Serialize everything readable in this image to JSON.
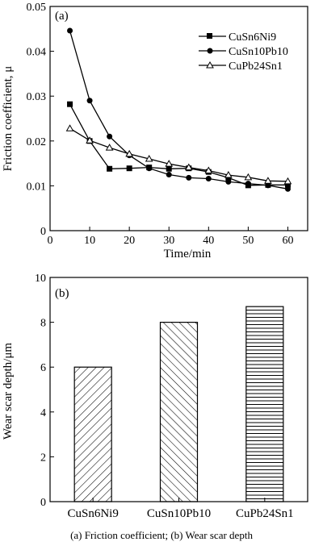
{
  "caption": "(a) Friction coefficient; (b) Wear scar depth",
  "chart_data": [
    {
      "type": "line",
      "panel_label": "(a)",
      "xlabel": "Time/min",
      "ylabel": "Friction coefficient, μ",
      "xlim": [
        0,
        65
      ],
      "ylim": [
        0,
        0.05
      ],
      "x_ticks": [
        "0",
        "10",
        "20",
        "30",
        "40",
        "50",
        "60"
      ],
      "y_ticks": [
        "0",
        "0.01",
        "0.02",
        "0.03",
        "0.04",
        "0.05"
      ],
      "x_tick_values": [
        0,
        10,
        20,
        30,
        40,
        50,
        60
      ],
      "y_tick_values": [
        0,
        0.01,
        0.02,
        0.03,
        0.04,
        0.05
      ],
      "legend_position": "top-right",
      "grid": false,
      "series": [
        {
          "name": "CuSn6Ni9",
          "marker": "filled-square",
          "x": [
            5,
            10,
            15,
            20,
            25,
            30,
            35,
            40,
            45,
            50,
            55,
            60
          ],
          "values": [
            0.0282,
            0.02,
            0.0138,
            0.0139,
            0.0141,
            0.0138,
            0.0139,
            0.0131,
            0.0118,
            0.0101,
            0.0102,
            0.0102
          ]
        },
        {
          "name": "CuSn10Pb10",
          "marker": "filled-circle",
          "x": [
            5,
            10,
            15,
            20,
            25,
            30,
            35,
            40,
            45,
            50,
            55,
            60
          ],
          "values": [
            0.0446,
            0.029,
            0.021,
            0.0168,
            0.0139,
            0.0125,
            0.0118,
            0.0116,
            0.0109,
            0.0105,
            0.0101,
            0.0093
          ]
        },
        {
          "name": "CuPb24Sn1",
          "marker": "open-triangle",
          "x": [
            5,
            10,
            15,
            20,
            25,
            30,
            35,
            40,
            45,
            50,
            55,
            60
          ],
          "values": [
            0.0228,
            0.0201,
            0.0185,
            0.0171,
            0.016,
            0.0149,
            0.0141,
            0.0134,
            0.0124,
            0.0119,
            0.0111,
            0.011
          ]
        }
      ]
    },
    {
      "type": "bar",
      "panel_label": "(b)",
      "xlabel": "",
      "ylabel": "Wear scar depth/μm",
      "ylim": [
        0,
        10
      ],
      "y_ticks": [
        "0",
        "2",
        "4",
        "6",
        "8",
        "10"
      ],
      "y_tick_values": [
        0,
        2,
        4,
        6,
        8,
        10
      ],
      "grid": false,
      "categories": [
        "CuSn6Ni9",
        "CuSn10Pb10",
        "CuPb24Sn1"
      ],
      "hatches": [
        "diagonal-up",
        "diagonal-down",
        "horizontal"
      ],
      "values": [
        6.0,
        8.0,
        8.7
      ]
    }
  ]
}
